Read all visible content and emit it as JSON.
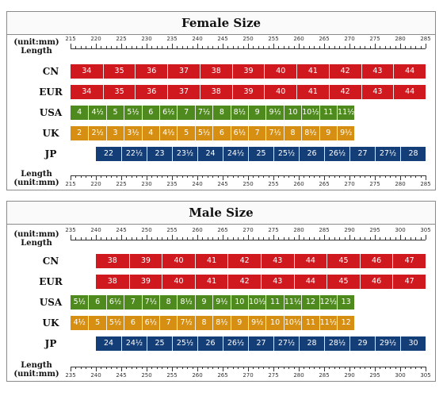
{
  "female": {
    "title": "Female Size",
    "unit_top": "(unit:mm)",
    "length_top": "Length",
    "length_bottom": "Length",
    "unit_bottom": "(unit:mm)",
    "ruler_start": 215,
    "ruler_end": 285,
    "ruler_step": 5,
    "rows": [
      {
        "label": "CN",
        "color": "#d0181f",
        "start": 215,
        "step": 6.3636,
        "values": [
          "34",
          "35",
          "36",
          "37",
          "38",
          "39",
          "40",
          "41",
          "42",
          "43",
          "44"
        ]
      },
      {
        "label": "EUR",
        "color": "#d0181f",
        "start": 215,
        "step": 6.3636,
        "values": [
          "34",
          "35",
          "36",
          "37",
          "38",
          "39",
          "40",
          "41",
          "42",
          "43",
          "44"
        ]
      },
      {
        "label": "USA",
        "color": "#4f8a1e",
        "start": 215,
        "step": 3.5,
        "values": [
          "4",
          "4½",
          "5",
          "5½",
          "6",
          "6½",
          "7",
          "7½",
          "8",
          "8½",
          "9",
          "9½",
          "10",
          "10½",
          "11",
          "11½"
        ]
      },
      {
        "label": "UK",
        "color": "#d68f12",
        "start": 215,
        "step": 3.5,
        "values": [
          "2",
          "2½",
          "3",
          "3½",
          "4",
          "4½",
          "5",
          "5½",
          "6",
          "6½",
          "7",
          "7½",
          "8",
          "8½",
          "9",
          "9½"
        ]
      },
      {
        "label": "JP",
        "color": "#143e78",
        "start": 220,
        "step": 5,
        "values": [
          "22",
          "22½",
          "23",
          "23½",
          "24",
          "24½",
          "25",
          "25½",
          "26",
          "26½",
          "27",
          "27½",
          "28"
        ]
      }
    ]
  },
  "male": {
    "title": "Male Size",
    "unit_top": "(unit:mm)",
    "length_top": "Length",
    "length_bottom": "Length",
    "unit_bottom": "(unit:mm)",
    "ruler_start": 235,
    "ruler_end": 305,
    "ruler_step": 5,
    "rows": [
      {
        "label": "CN",
        "color": "#d0181f",
        "start": 240,
        "step": 6.5,
        "values": [
          "38",
          "39",
          "40",
          "41",
          "42",
          "43",
          "44",
          "45",
          "46",
          "47"
        ]
      },
      {
        "label": "EUR",
        "color": "#d0181f",
        "start": 240,
        "step": 6.5,
        "values": [
          "38",
          "39",
          "40",
          "41",
          "42",
          "43",
          "44",
          "45",
          "46",
          "47"
        ]
      },
      {
        "label": "USA",
        "color": "#4f8a1e",
        "start": 235,
        "step": 3.5,
        "values": [
          "5½",
          "6",
          "6½",
          "7",
          "7½",
          "8",
          "8½",
          "9",
          "9½",
          "10",
          "10½",
          "11",
          "11½",
          "12",
          "12½",
          "13"
        ]
      },
      {
        "label": "UK",
        "color": "#d68f12",
        "start": 235,
        "step": 3.5,
        "values": [
          "4½",
          "5",
          "5½",
          "6",
          "6½",
          "7",
          "7½",
          "8",
          "8½",
          "9",
          "9½",
          "10",
          "10½",
          "11",
          "11½",
          "12"
        ]
      },
      {
        "label": "JP",
        "color": "#143e78",
        "start": 240,
        "step": 5,
        "values": [
          "24",
          "24½",
          "25",
          "25½",
          "26",
          "26½",
          "27",
          "27½",
          "28",
          "28½",
          "29",
          "29½",
          "30"
        ]
      }
    ]
  }
}
